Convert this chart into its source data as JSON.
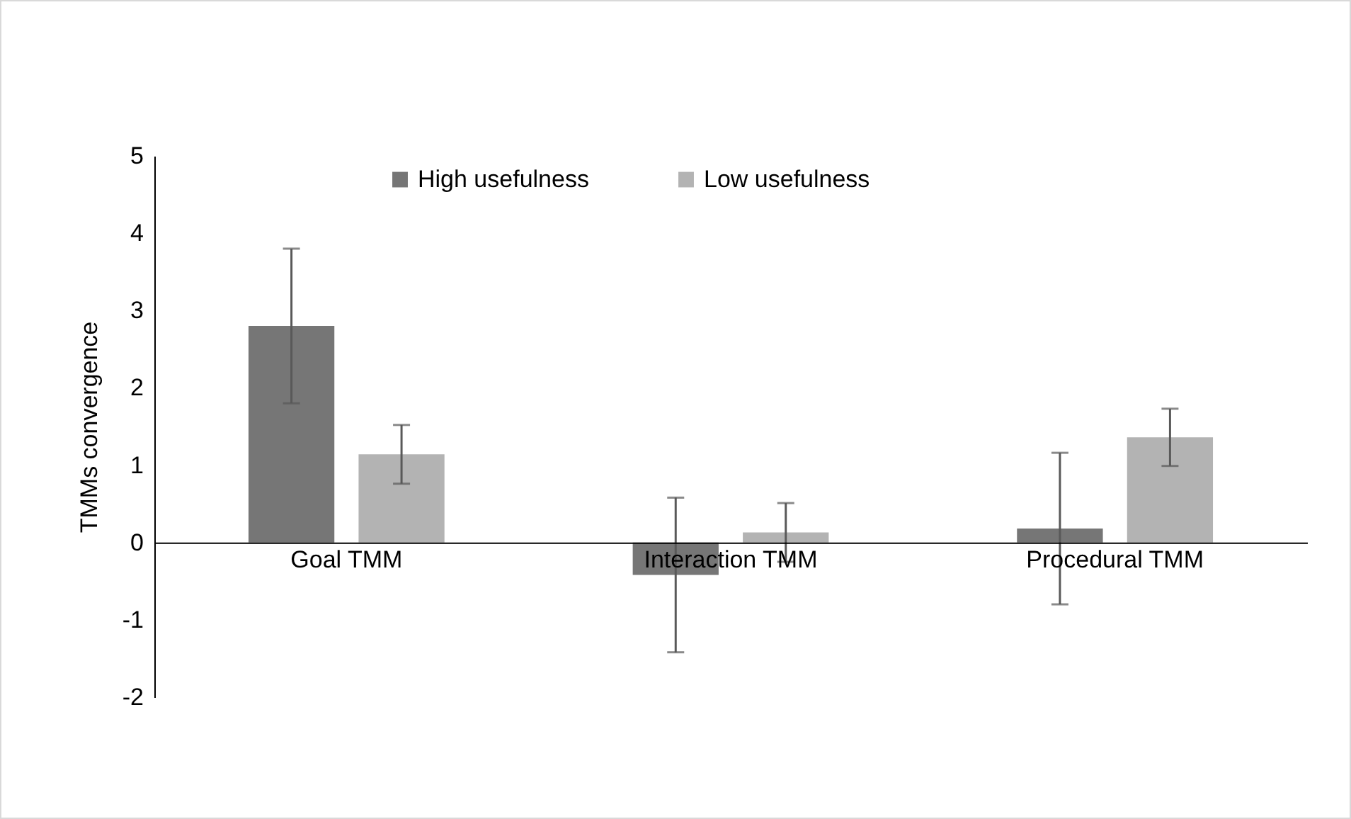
{
  "chart_data": {
    "type": "bar",
    "ylabel": "TMMs convergence",
    "categories": [
      "Goal TMM",
      "Interaction TMM",
      "Procedural TMM"
    ],
    "series": [
      {
        "name": "High usefulness",
        "color": "#767676",
        "values": [
          2.8,
          -0.42,
          0.18
        ],
        "errors": [
          1.0,
          1.0,
          0.98
        ]
      },
      {
        "name": "Low usefulness",
        "color": "#b3b3b3",
        "values": [
          1.14,
          0.13,
          1.36
        ],
        "errors": [
          0.38,
          0.38,
          0.37
        ]
      }
    ],
    "ylim": [
      -2,
      5
    ],
    "yticks": [
      -2,
      -1,
      0,
      1,
      2,
      3,
      4,
      5
    ],
    "grid": false,
    "legend": "top"
  }
}
